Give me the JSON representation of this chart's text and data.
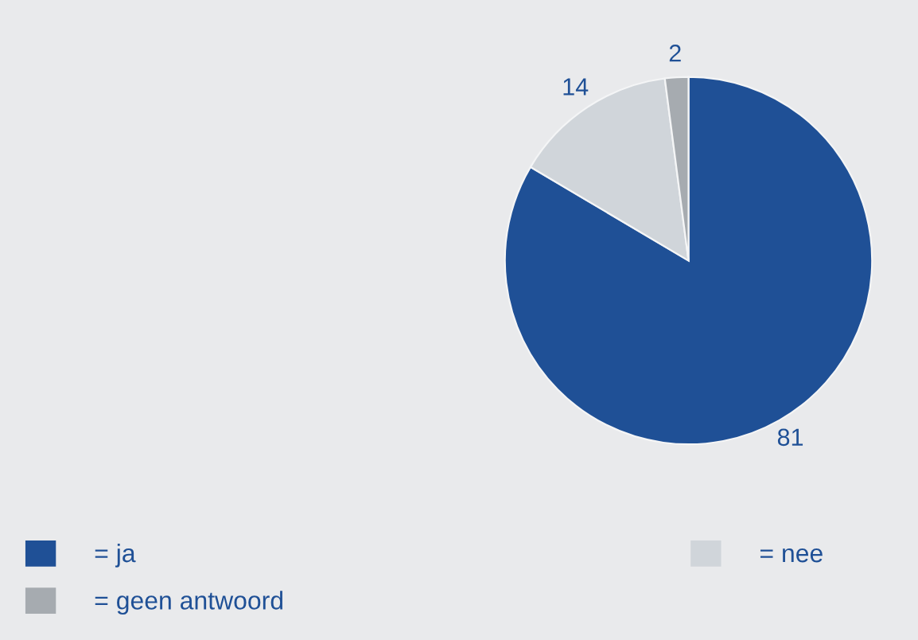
{
  "chart_data": {
    "type": "pie",
    "categories": [
      "= ja",
      "= nee",
      "= geen antwoord"
    ],
    "values": [
      81,
      14,
      2
    ],
    "colors": [
      "#1f5096",
      "#d0d5da",
      "#a6abb0"
    ],
    "data_labels": true,
    "legend": "bottom"
  }
}
